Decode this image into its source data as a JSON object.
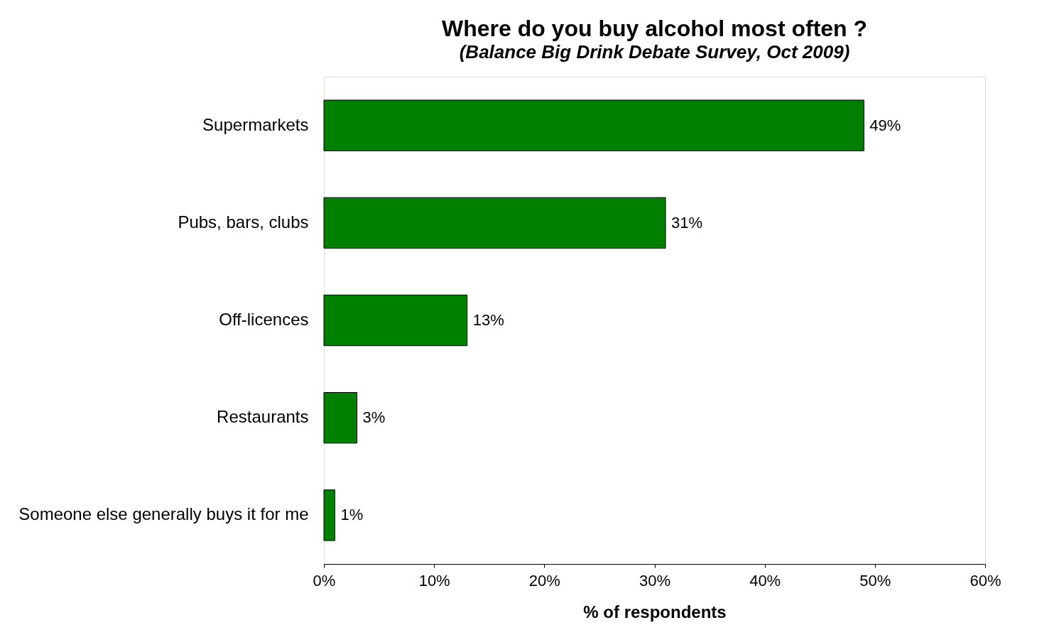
{
  "chart_data": {
    "type": "bar",
    "orientation": "horizontal",
    "title": "Where do you buy alcohol most often ?",
    "subtitle": "(Balance Big Drink Debate Survey, Oct 2009)",
    "xlabel": "% of respondents",
    "categories": [
      "Supermarkets",
      "Pubs, bars, clubs",
      "Off-licences",
      "Restaurants",
      "Someone else generally buys it for me"
    ],
    "values": [
      49,
      31,
      13,
      3,
      1
    ],
    "value_labels": [
      "49%",
      "31%",
      "13%",
      "3%",
      "1%"
    ],
    "color": "#008000",
    "xlim": [
      0,
      60
    ],
    "xticks": [
      {
        "value": 0,
        "label": "0%"
      },
      {
        "value": 10,
        "label": "10%"
      },
      {
        "value": 20,
        "label": "20%"
      },
      {
        "value": 30,
        "label": "30%"
      },
      {
        "value": 40,
        "label": "40%"
      },
      {
        "value": 50,
        "label": "50%"
      },
      {
        "value": 60,
        "label": "60%"
      }
    ],
    "grid": false
  }
}
